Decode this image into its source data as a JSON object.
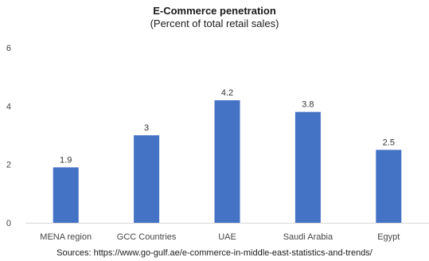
{
  "chart_data": {
    "type": "bar",
    "title": "E-Commerce penetration",
    "subtitle": "(Percent of total retail sales)",
    "categories": [
      "MENA region",
      "GCC Countries",
      "UAE",
      "Saudi Arabia",
      "Egypt"
    ],
    "values": [
      1.9,
      3,
      4.2,
      3.8,
      2.5
    ],
    "data_labels": [
      "1.9",
      "3",
      "4.2",
      "3.8",
      "2.5"
    ],
    "y_ticks": [
      "0",
      "2",
      "4",
      "6"
    ],
    "ylim": [
      0,
      6
    ],
    "grid": false,
    "bar_color": "#4472C4",
    "xlabel": "",
    "ylabel": ""
  },
  "source": "Sources: https://www.go-gulf.ae/e-commerce-in-middle-east-statistics-and-trends/"
}
